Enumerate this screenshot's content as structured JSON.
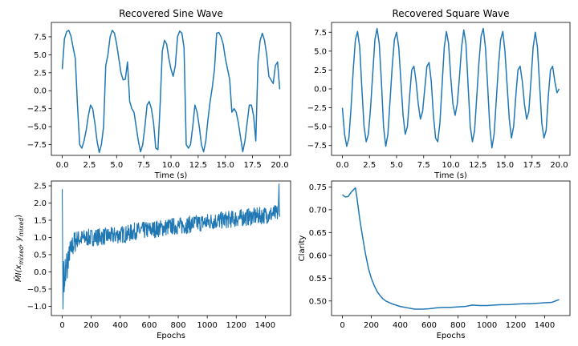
{
  "colors": {
    "line": "#1f77b4",
    "axes": "#000000",
    "background": "#ffffff"
  },
  "chart_data": [
    {
      "id": "sine",
      "type": "line",
      "title": "Recovered Sine Wave",
      "xlabel": "Time (s)",
      "ylabel": "",
      "xlim": [
        -1.0,
        21.0
      ],
      "ylim": [
        -9.0,
        9.5
      ],
      "xticks": [
        0.0,
        2.5,
        5.0,
        7.5,
        10.0,
        12.5,
        15.0,
        17.5,
        20.0
      ],
      "xtick_labels": [
        "0.0",
        "2.5",
        "5.0",
        "7.5",
        "10.0",
        "12.5",
        "15.0",
        "17.5",
        "20.0"
      ],
      "yticks": [
        -7.5,
        -5.0,
        -2.5,
        0.0,
        2.5,
        5.0,
        7.5
      ],
      "ytick_labels": [
        "−7.5",
        "−5.0",
        "−2.5",
        "0.0",
        "2.5",
        "5.0",
        "7.5"
      ],
      "series": [
        {
          "x": [
            0.0,
            0.2,
            0.4,
            0.6,
            0.8,
            1.0,
            1.2,
            1.4,
            1.6,
            1.8,
            2.0,
            2.2,
            2.4,
            2.6,
            2.8,
            3.0,
            3.2,
            3.4,
            3.6,
            3.8,
            4.0,
            4.2,
            4.4,
            4.6,
            4.8,
            5.0,
            5.2,
            5.4,
            5.6,
            5.8,
            6.0,
            6.2,
            6.4,
            6.6,
            6.8,
            7.0,
            7.2,
            7.4,
            7.6,
            7.8,
            8.0,
            8.2,
            8.4,
            8.6,
            8.8,
            9.0,
            9.2,
            9.4,
            9.6,
            9.8,
            10.0,
            10.2,
            10.4,
            10.6,
            10.8,
            11.0,
            11.2,
            11.4,
            11.6,
            11.8,
            12.0,
            12.2,
            12.4,
            12.6,
            12.8,
            13.0,
            13.2,
            13.4,
            13.6,
            13.8,
            14.0,
            14.2,
            14.4,
            14.6,
            14.8,
            15.0,
            15.2,
            15.4,
            15.6,
            15.8,
            16.0,
            16.2,
            16.4,
            16.6,
            16.8,
            17.0,
            17.2,
            17.4,
            17.6,
            17.8,
            18.0,
            18.2,
            18.4,
            18.6,
            18.8,
            19.0,
            19.2,
            19.4,
            19.6,
            19.8,
            20.0
          ],
          "y": [
            3.0,
            7.2,
            8.2,
            8.4,
            7.6,
            6.0,
            4.5,
            -2.0,
            -7.5,
            -8.0,
            -7.0,
            -5.5,
            -3.5,
            -2.0,
            -2.5,
            -4.5,
            -7.0,
            -8.6,
            -7.5,
            -5.0,
            3.5,
            5.0,
            7.5,
            8.4,
            8.0,
            6.5,
            4.5,
            2.5,
            1.5,
            1.6,
            4.0,
            -1.5,
            -2.5,
            -3.0,
            -5.0,
            -7.0,
            -8.5,
            -7.5,
            -5.0,
            -2.0,
            -1.5,
            -2.5,
            -4.5,
            -8.0,
            -8.2,
            -2.0,
            5.5,
            7.0,
            6.5,
            4.5,
            3.0,
            2.0,
            3.5,
            7.5,
            8.3,
            8.0,
            6.0,
            -7.5,
            -8.0,
            -7.5,
            -5.0,
            -2.0,
            -3.0,
            -5.0,
            -7.5,
            -8.5,
            -7.0,
            -4.0,
            -1.5,
            0.5,
            3.0,
            8.0,
            8.1,
            7.5,
            6.5,
            4.5,
            3.0,
            1.5,
            -3.0,
            -2.5,
            -3.0,
            -4.5,
            -6.5,
            -8.5,
            -7.0,
            -4.5,
            -2.0,
            -2.0,
            -3.5,
            -7.0,
            4.0,
            7.0,
            8.0,
            7.0,
            5.0,
            2.0,
            1.5,
            1.0,
            3.5,
            4.0,
            0.2
          ]
        }
      ]
    },
    {
      "id": "square",
      "type": "line",
      "title": "Recovered Square Wave",
      "xlabel": "Time (s)",
      "ylabel": "",
      "xlim": [
        -1.0,
        21.0
      ],
      "ylim": [
        -8.8,
        8.8
      ],
      "xticks": [
        0.0,
        2.5,
        5.0,
        7.5,
        10.0,
        12.5,
        15.0,
        17.5,
        20.0
      ],
      "xtick_labels": [
        "0.0",
        "2.5",
        "5.0",
        "7.5",
        "10.0",
        "12.5",
        "15.0",
        "17.5",
        "20.0"
      ],
      "yticks": [
        -7.5,
        -5.0,
        -2.5,
        0.0,
        2.5,
        5.0,
        7.5
      ],
      "ytick_labels": [
        "−7.5",
        "−5.0",
        "−2.5",
        "0.0",
        "2.5",
        "5.0",
        "7.5"
      ],
      "series": [
        {
          "x": [
            0.0,
            0.2,
            0.4,
            0.6,
            0.8,
            1.0,
            1.2,
            1.4,
            1.6,
            1.8,
            2.0,
            2.2,
            2.4,
            2.6,
            2.8,
            3.0,
            3.2,
            3.4,
            3.6,
            3.8,
            4.0,
            4.2,
            4.4,
            4.6,
            4.8,
            5.0,
            5.2,
            5.4,
            5.6,
            5.8,
            6.0,
            6.2,
            6.4,
            6.6,
            6.8,
            7.0,
            7.2,
            7.4,
            7.6,
            7.8,
            8.0,
            8.2,
            8.4,
            8.6,
            8.8,
            9.0,
            9.2,
            9.4,
            9.6,
            9.8,
            10.0,
            10.2,
            10.4,
            10.6,
            10.8,
            11.0,
            11.2,
            11.4,
            11.6,
            11.8,
            12.0,
            12.2,
            12.4,
            12.6,
            12.8,
            13.0,
            13.2,
            13.4,
            13.6,
            13.8,
            14.0,
            14.2,
            14.4,
            14.6,
            14.8,
            15.0,
            15.2,
            15.4,
            15.6,
            15.8,
            16.0,
            16.2,
            16.4,
            16.6,
            16.8,
            17.0,
            17.2,
            17.4,
            17.6,
            17.8,
            18.0,
            18.2,
            18.4,
            18.6,
            18.8,
            19.0,
            19.2,
            19.4,
            19.6,
            19.8,
            20.0
          ],
          "y": [
            -2.5,
            -6.0,
            -7.6,
            -6.5,
            -2.5,
            2.5,
            6.5,
            7.6,
            5.5,
            0.0,
            -5.0,
            -7.0,
            -6.0,
            -2.5,
            2.0,
            6.5,
            8.0,
            6.0,
            1.0,
            -5.0,
            -7.6,
            -6.0,
            -1.5,
            3.0,
            6.5,
            7.5,
            5.5,
            1.0,
            -3.5,
            -6.0,
            -5.0,
            -1.0,
            2.5,
            3.0,
            1.0,
            -2.0,
            -4.0,
            -3.0,
            0.0,
            3.0,
            3.5,
            1.0,
            -3.5,
            -6.5,
            -7.0,
            -4.5,
            0.5,
            5.5,
            7.6,
            6.0,
            1.5,
            -2.0,
            -3.5,
            -2.0,
            1.5,
            5.5,
            7.8,
            6.0,
            0.5,
            -5.0,
            -7.0,
            -5.5,
            -1.0,
            3.5,
            7.0,
            8.0,
            5.5,
            0.5,
            -5.0,
            -7.8,
            -6.0,
            -1.5,
            3.0,
            6.5,
            7.6,
            5.0,
            0.5,
            -4.0,
            -6.5,
            -5.0,
            -1.0,
            2.5,
            3.0,
            1.0,
            -2.0,
            -4.0,
            -3.0,
            1.0,
            5.5,
            7.5,
            5.5,
            0.5,
            -4.5,
            -6.5,
            -5.5,
            -1.0,
            2.5,
            3.0,
            1.0,
            -0.5,
            0.0
          ]
        }
      ]
    },
    {
      "id": "mi",
      "type": "line",
      "title": "",
      "xlabel": "Epochs",
      "ylabel": "M̂I(x_mixed, y_mixed)",
      "ylabel_parts": {
        "main": "M̂I(x",
        "sub1": "mixed",
        "mid": ", y",
        "sub2": "mixed",
        "end": ")"
      },
      "xlim": [
        -75,
        1575
      ],
      "ylim": [
        -1.27,
        2.64
      ],
      "xticks": [
        0,
        200,
        400,
        600,
        800,
        1000,
        1200,
        1400
      ],
      "xtick_labels": [
        "0",
        "200",
        "400",
        "600",
        "800",
        "1000",
        "1200",
        "1400"
      ],
      "yticks": [
        -1.0,
        -0.5,
        0.0,
        0.5,
        1.0,
        1.5,
        2.0,
        2.5
      ],
      "ytick_labels": [
        "−1.0",
        "−0.5",
        "0.0",
        "0.5",
        "1.0",
        "1.5",
        "2.0",
        "2.5"
      ],
      "series": [
        {
          "x": [
            0,
            5,
            10,
            15,
            20,
            25,
            30,
            35,
            40,
            45,
            50,
            60,
            70,
            80,
            90,
            100,
            150,
            200,
            250,
            300,
            350,
            400,
            450,
            500,
            550,
            600,
            650,
            700,
            750,
            800,
            850,
            900,
            950,
            1000,
            1050,
            1100,
            1150,
            1200,
            1250,
            1300,
            1350,
            1400,
            1450,
            1490,
            1495,
            1500
          ],
          "y": [
            2.4,
            -1.08,
            0.3,
            -0.5,
            0.2,
            -0.3,
            0.4,
            0.0,
            0.45,
            0.35,
            0.6,
            0.55,
            0.75,
            0.8,
            0.9,
            0.95,
            0.98,
            1.0,
            1.02,
            1.03,
            1.05,
            1.08,
            1.1,
            1.18,
            1.2,
            1.22,
            1.25,
            1.28,
            1.32,
            1.33,
            1.35,
            1.4,
            1.42,
            1.45,
            1.48,
            1.5,
            1.52,
            1.55,
            1.58,
            1.6,
            1.62,
            1.65,
            1.68,
            1.7,
            2.5,
            1.6
          ],
          "noise_amplitude": 0.25
        }
      ]
    },
    {
      "id": "clarity",
      "type": "line",
      "title": "",
      "xlabel": "Epochs",
      "ylabel": "Clarity",
      "xlim": [
        -75,
        1575
      ],
      "ylim": [
        0.468,
        0.763
      ],
      "xticks": [
        0,
        200,
        400,
        600,
        800,
        1000,
        1200,
        1400
      ],
      "xtick_labels": [
        "0",
        "200",
        "400",
        "600",
        "800",
        "1000",
        "1200",
        "1400"
      ],
      "yticks": [
        0.5,
        0.55,
        0.6,
        0.65,
        0.7,
        0.75
      ],
      "ytick_labels": [
        "0.50",
        "0.55",
        "0.60",
        "0.65",
        "0.70",
        "0.75"
      ],
      "series": [
        {
          "x": [
            0,
            20,
            40,
            60,
            80,
            90,
            100,
            120,
            140,
            160,
            180,
            200,
            220,
            240,
            260,
            280,
            300,
            350,
            400,
            450,
            500,
            550,
            600,
            650,
            700,
            750,
            800,
            850,
            900,
            950,
            1000,
            1050,
            1100,
            1150,
            1200,
            1250,
            1300,
            1350,
            1400,
            1450,
            1500
          ],
          "y": [
            0.733,
            0.728,
            0.729,
            0.738,
            0.745,
            0.748,
            0.728,
            0.68,
            0.64,
            0.603,
            0.572,
            0.55,
            0.534,
            0.521,
            0.512,
            0.505,
            0.5,
            0.493,
            0.488,
            0.485,
            0.482,
            0.482,
            0.483,
            0.485,
            0.486,
            0.486,
            0.487,
            0.488,
            0.491,
            0.49,
            0.49,
            0.491,
            0.492,
            0.492,
            0.493,
            0.494,
            0.494,
            0.495,
            0.496,
            0.497,
            0.503
          ]
        }
      ]
    }
  ]
}
